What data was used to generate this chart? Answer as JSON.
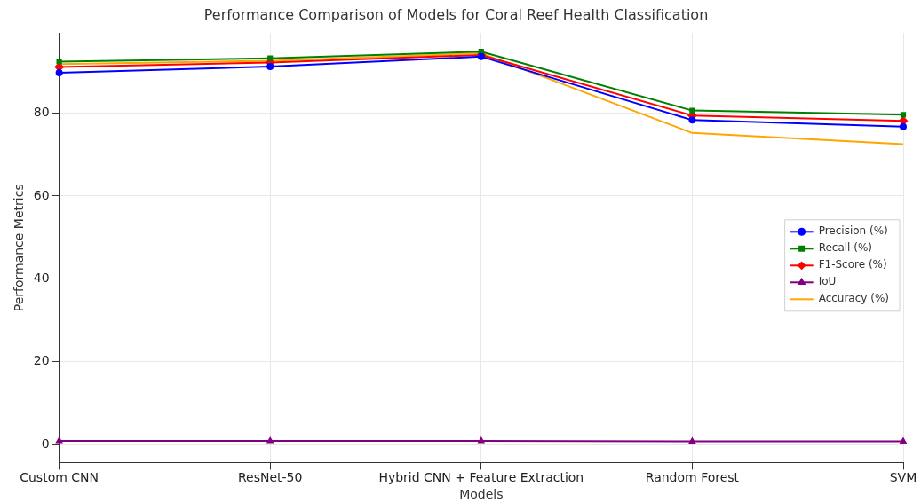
{
  "chart_data": {
    "type": "line",
    "title": "Performance Comparison of Models for Coral Reef Health Classification",
    "xlabel": "Models",
    "ylabel": "Performance Metrics",
    "categories": [
      "Custom CNN",
      "ResNet-50",
      "Hybrid CNN + Feature Extraction",
      "Random Forest",
      "SVM"
    ],
    "series": [
      {
        "name": "Precision (%)",
        "color": "#0000ff",
        "marker": "circle",
        "values": [
          89.7,
          91.2,
          93.6,
          78.3,
          76.7
        ]
      },
      {
        "name": "Recall (%)",
        "color": "#008000",
        "marker": "square",
        "values": [
          92.4,
          93.2,
          94.8,
          80.6,
          79.6
        ]
      },
      {
        "name": "F1-Score (%)",
        "color": "#ff0000",
        "marker": "diamond",
        "values": [
          91.1,
          92.2,
          94.0,
          79.4,
          78.1
        ]
      },
      {
        "name": "IoU",
        "color": "#800080",
        "marker": "triangle",
        "values": [
          0.9,
          0.9,
          0.9,
          0.8,
          0.8
        ]
      },
      {
        "name": "Accuracy (%)",
        "color": "#ffa500",
        "marker": "none",
        "values": [
          91.8,
          92.6,
          94.4,
          75.2,
          72.5
        ]
      }
    ],
    "ylim": [
      -4.3,
      99.3
    ],
    "yticks": [
      0,
      20,
      40,
      60,
      80
    ],
    "grid": true,
    "legend": "right",
    "line_style": "solid"
  }
}
